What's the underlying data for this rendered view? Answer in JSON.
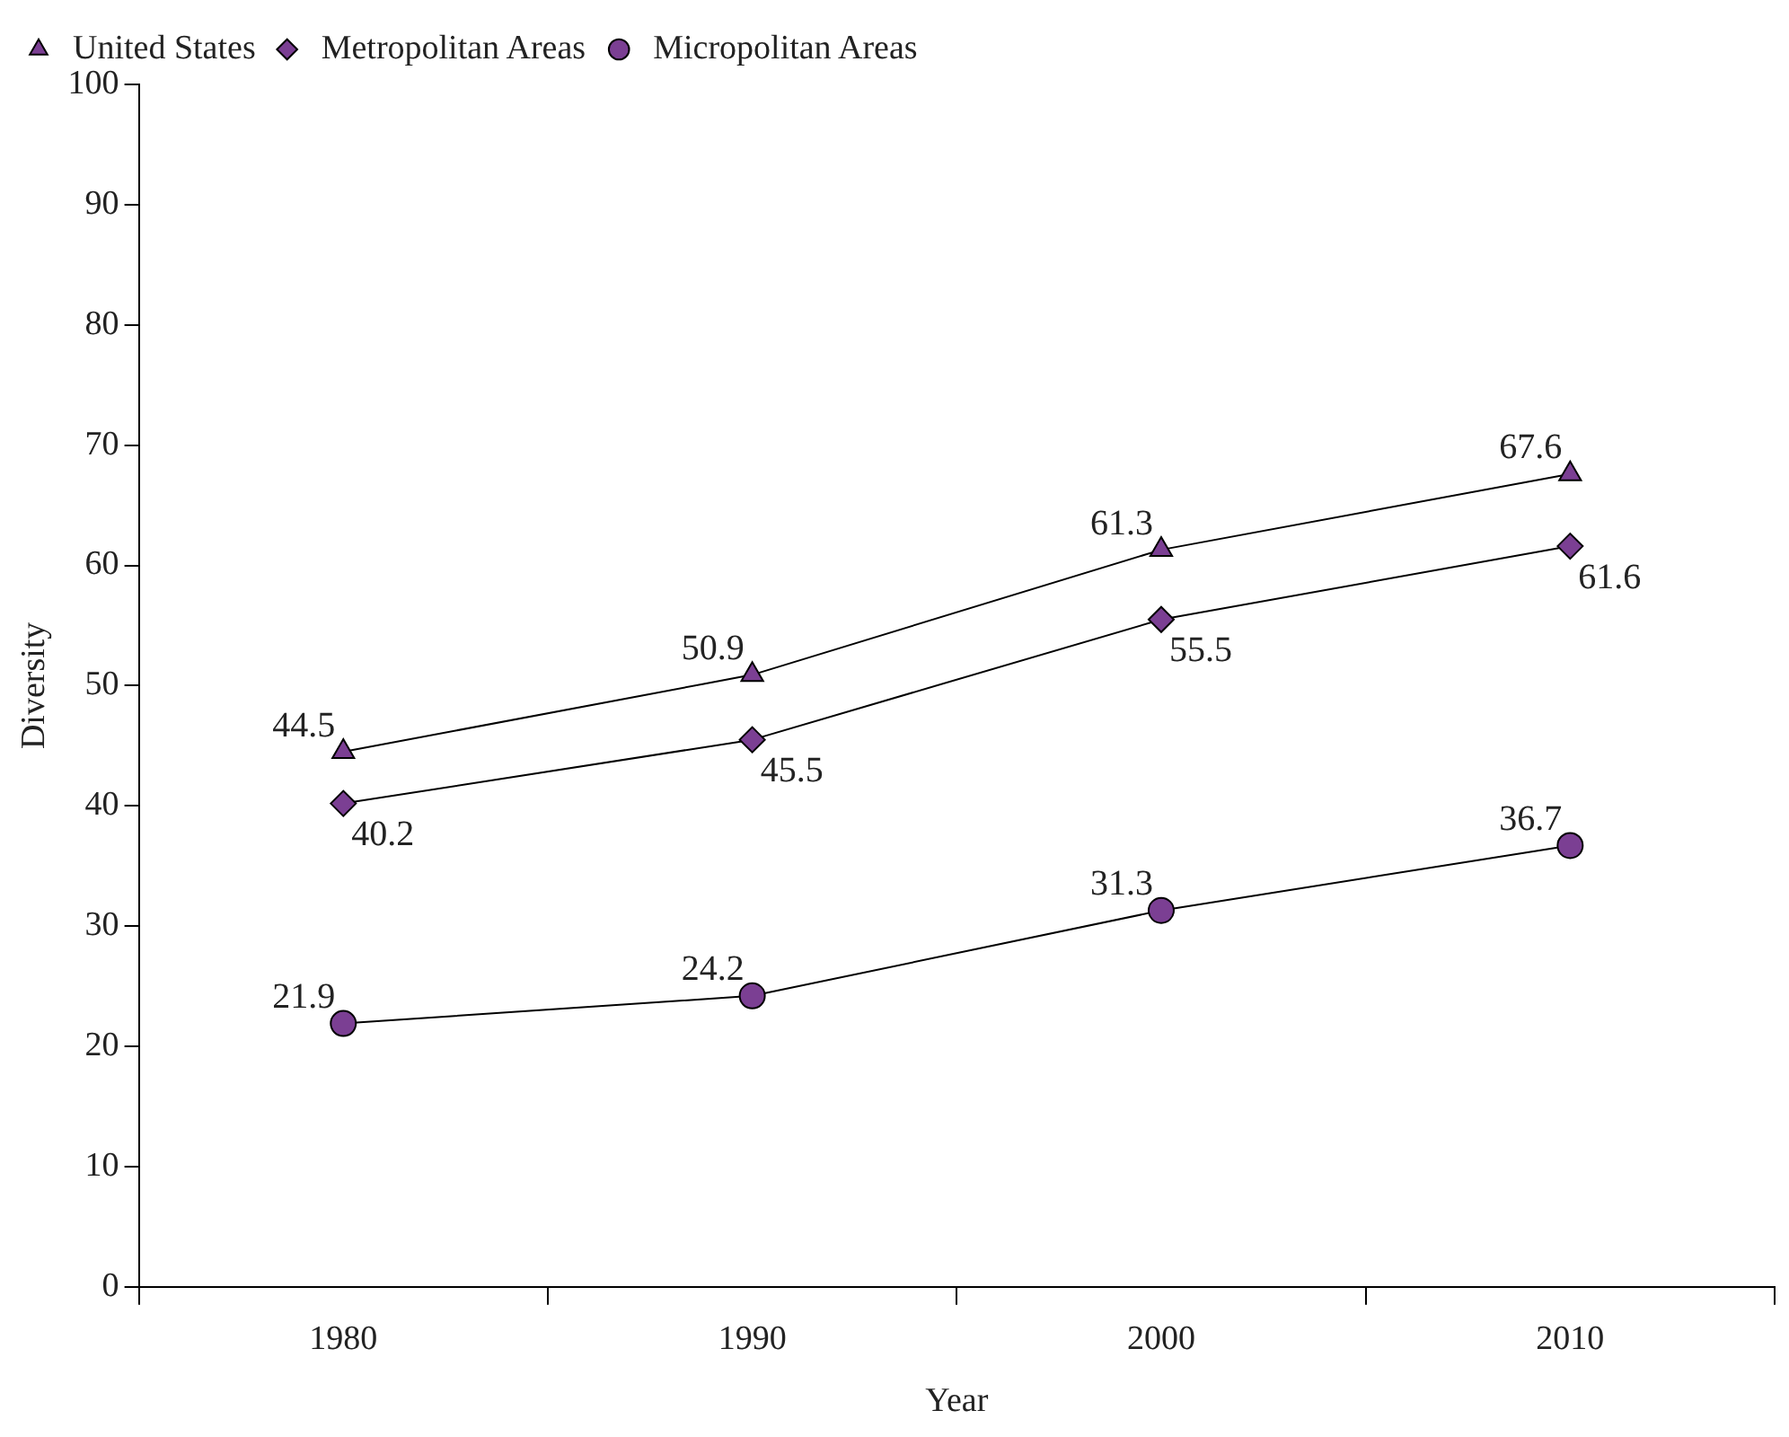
{
  "chart_data": {
    "type": "line",
    "xlabel": "Year",
    "ylabel": "Diversity",
    "categories": [
      "1980",
      "1990",
      "2000",
      "2010"
    ],
    "series": [
      {
        "name": "United States",
        "color": "#7b3f93",
        "marker": "triangle",
        "values": [
          44.5,
          50.9,
          61.3,
          67.6
        ]
      },
      {
        "name": "Metropolitan Areas",
        "color": "#7b3f93",
        "marker": "diamond",
        "values": [
          40.2,
          45.5,
          55.5,
          61.6
        ]
      },
      {
        "name": "Micropolitan Areas",
        "color": "#7b3f93",
        "marker": "circle",
        "values": [
          21.9,
          24.2,
          31.3,
          36.7
        ]
      }
    ],
    "ylim": [
      0,
      100
    ],
    "yticks": [
      0,
      10,
      20,
      30,
      40,
      50,
      60,
      70,
      80,
      90,
      100
    ],
    "grid": false,
    "legend": "top left",
    "data_labels": true,
    "line_style": "solid"
  }
}
